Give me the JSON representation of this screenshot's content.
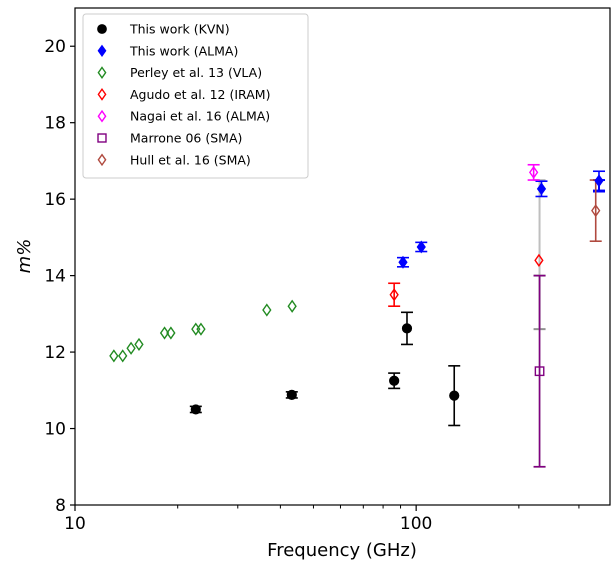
{
  "chart_data": {
    "type": "scatter",
    "xlabel": "Frequency (GHz)",
    "ylabel": "m%",
    "x_scale": "log",
    "xlim": [
      10,
      370
    ],
    "ylim": [
      8,
      21
    ],
    "x_ticks": [
      10,
      100
    ],
    "x_tick_labels": [
      "10",
      "100"
    ],
    "y_ticks": [
      8,
      10,
      12,
      14,
      16,
      18,
      20
    ],
    "y_tick_labels": [
      "8",
      "10",
      "12",
      "14",
      "16",
      "18",
      "20"
    ],
    "grid": false,
    "legend_position": "top-left",
    "series": [
      {
        "name": "This work (KVN)",
        "marker": "filled-circle",
        "color": "#000000",
        "points": [
          {
            "x": 22.6,
            "y": 10.5,
            "err": 0.08
          },
          {
            "x": 43.2,
            "y": 10.88,
            "err": 0.08
          },
          {
            "x": 86.2,
            "y": 11.25,
            "err": 0.2
          },
          {
            "x": 94.0,
            "y": 12.62,
            "err": 0.42
          },
          {
            "x": 129.3,
            "y": 10.86,
            "err": 0.78
          }
        ]
      },
      {
        "name": "This work (ALMA)",
        "marker": "filled-diamond",
        "color": "#0000ff",
        "points": [
          {
            "x": 91.5,
            "y": 14.35,
            "err": 0.12
          },
          {
            "x": 103.5,
            "y": 14.75,
            "err": 0.12
          },
          {
            "x": 233.0,
            "y": 16.27,
            "err": 0.2
          },
          {
            "x": 343.5,
            "y": 16.48,
            "err": 0.25
          }
        ]
      },
      {
        "name": "Perley et al. 13 (VLA)",
        "marker": "open-diamond",
        "color": "#228b22",
        "points": [
          {
            "x": 13.0,
            "y": 11.9
          },
          {
            "x": 13.8,
            "y": 11.9
          },
          {
            "x": 14.6,
            "y": 12.1
          },
          {
            "x": 15.4,
            "y": 12.2
          },
          {
            "x": 18.3,
            "y": 12.5
          },
          {
            "x": 19.1,
            "y": 12.5
          },
          {
            "x": 22.6,
            "y": 12.6
          },
          {
            "x": 23.4,
            "y": 12.6
          },
          {
            "x": 36.5,
            "y": 13.1
          },
          {
            "x": 43.3,
            "y": 13.2
          }
        ]
      },
      {
        "name": "Agudo et al. 12 (IRAM)",
        "marker": "open-diamond",
        "color": "#ff0000",
        "points": [
          {
            "x": 86.2,
            "y": 13.5,
            "err": 0.3
          },
          {
            "x": 229.0,
            "y": 14.4
          }
        ]
      },
      {
        "name": "Nagai et al. 16 (ALMA)",
        "marker": "open-diamond",
        "color": "#ff00ff",
        "points": [
          {
            "x": 221.0,
            "y": 16.7,
            "err": 0.2
          }
        ]
      },
      {
        "name": "Marrone 06 (SMA)",
        "marker": "open-square",
        "color": "#800080",
        "points": [
          {
            "x": 230.0,
            "y": 11.5,
            "err": 2.5
          }
        ]
      },
      {
        "name": "Hull et al. 16 (SMA)",
        "marker": "open-diamond",
        "color": "#b04a3f",
        "points": [
          {
            "x": 336.0,
            "y": 15.7,
            "err": 0.8
          }
        ]
      }
    ],
    "extra_errorbars": [
      {
        "x": 230.0,
        "y1": 9.0,
        "y2": 16.5,
        "color": "#bfbfbf"
      },
      {
        "x": 230.0,
        "y1": 12.6,
        "y2": 14.0,
        "color": "#909090"
      },
      {
        "x": 343.5,
        "y1": 16.2,
        "y2": 16.5,
        "color": "#0000ff"
      }
    ]
  }
}
